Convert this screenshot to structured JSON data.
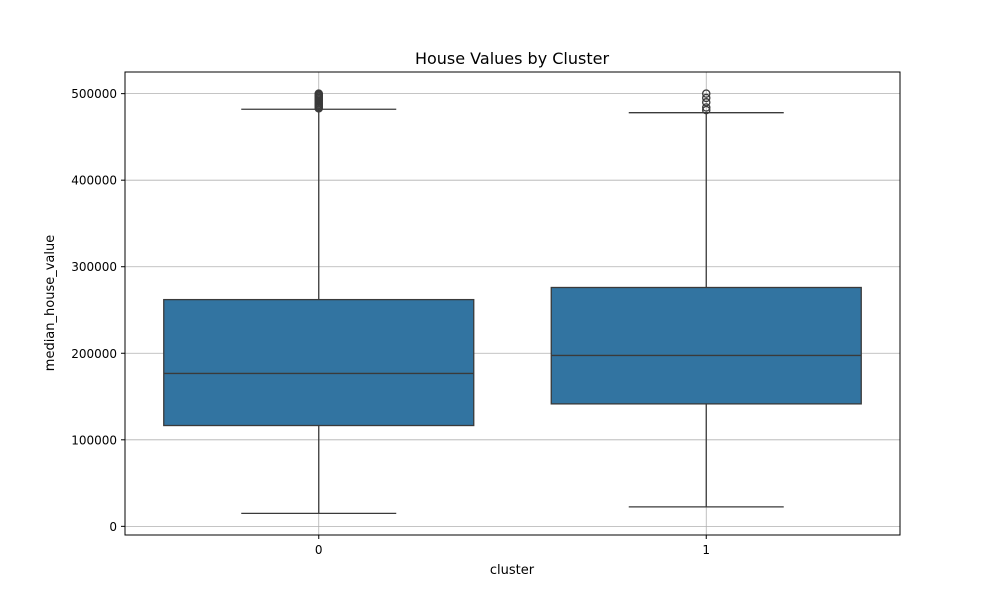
{
  "chart_data": {
    "type": "box",
    "title": "House Values by Cluster",
    "xlabel": "cluster",
    "ylabel": "median_house_value",
    "categories": [
      "0",
      "1"
    ],
    "ylim": [
      -10000,
      525000
    ],
    "yticks": [
      0,
      100000,
      200000,
      300000,
      400000,
      500000
    ],
    "ytick_labels": [
      "0",
      "100000",
      "200000",
      "300000",
      "400000",
      "500000"
    ],
    "grid": true,
    "box_color": "#3274a1",
    "edge_color": "#3a3a3a",
    "boxes": [
      {
        "category": "0",
        "whisker_low": 14999,
        "q1": 116500,
        "median": 176700,
        "q3": 262000,
        "whisker_high": 482000,
        "outliers": [
          483000,
          484500,
          486000,
          487500,
          489000,
          490500,
          492000,
          493500,
          495000,
          496500,
          498000,
          499000,
          500001
        ]
      },
      {
        "category": "1",
        "whisker_low": 22500,
        "q1": 141500,
        "median": 197500,
        "q3": 276000,
        "whisker_high": 478000,
        "outliers": [
          481000,
          484000,
          490000,
          495000,
          500001
        ]
      }
    ]
  }
}
